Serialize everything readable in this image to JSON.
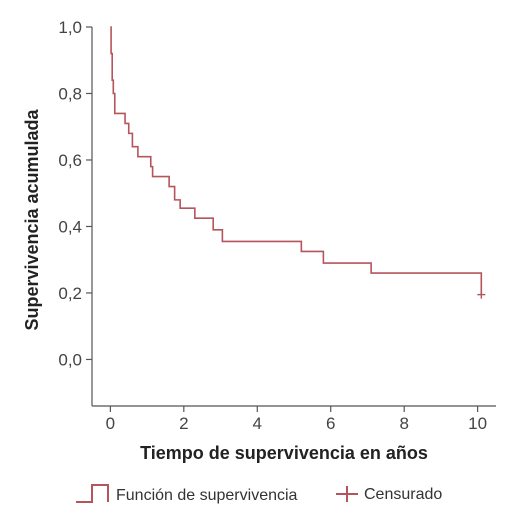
{
  "chart_data": {
    "type": "line",
    "title": "",
    "xlabel": "Tiempo de supervivencia en años",
    "ylabel": "Supervivencia acumulada",
    "xlim": [
      -0.5,
      10.5
    ],
    "ylim": [
      -0.14,
      1.0
    ],
    "x_ticks": [
      0,
      2,
      4,
      6,
      8,
      10
    ],
    "x_tick_labels": [
      "0",
      "2",
      "4",
      "6",
      "8",
      "10"
    ],
    "y_ticks": [
      0.0,
      0.2,
      0.4,
      0.6,
      0.8,
      1.0
    ],
    "y_tick_labels": [
      "0,0",
      "0,2",
      "0,4",
      "0,6",
      "0,8",
      "1,0"
    ],
    "grid": false,
    "legend_position": "bottom",
    "series": [
      {
        "name": "Función de supervivencia",
        "color": "#b5545c",
        "step": true,
        "x": [
          0,
          0.02,
          0.05,
          0.08,
          0.12,
          0.4,
          0.5,
          0.6,
          0.75,
          1.1,
          1.15,
          1.25,
          1.6,
          1.75,
          1.9,
          2.3,
          2.8,
          3.05,
          5.2,
          5.8,
          7.1,
          10.1
        ],
        "y": [
          1.0,
          0.92,
          0.84,
          0.8,
          0.74,
          0.71,
          0.68,
          0.64,
          0.61,
          0.58,
          0.55,
          0.55,
          0.52,
          0.48,
          0.455,
          0.425,
          0.39,
          0.355,
          0.325,
          0.29,
          0.26,
          0.195
        ]
      }
    ],
    "censored": {
      "name": "Censurado",
      "color": "#b5545c",
      "x": [
        10.1
      ],
      "y": [
        0.195
      ]
    }
  }
}
